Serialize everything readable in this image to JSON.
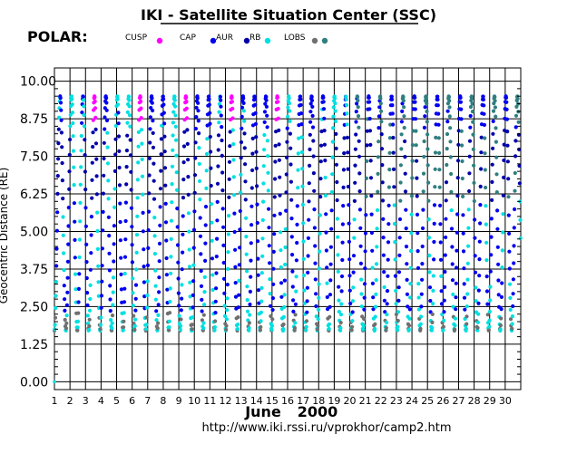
{
  "title": "IKI - Satellite Situation Center (SSC)",
  "satellite": "POLAR:",
  "legend": [
    {
      "label": "CUSP",
      "color": "#ff00ff"
    },
    {
      "label": "CAP",
      "color": "#0000ee"
    },
    {
      "label": "AUR",
      "color": "#0000aa"
    },
    {
      "label": "RB",
      "color": "#00e0e0"
    },
    {
      "label": "LOBS",
      "color": "#707070"
    },
    {
      "label": "",
      "color": "#2f7f80"
    }
  ],
  "month_label": "June",
  "year_label": "2000",
  "url": "http://www.iki.rssi.ru/vprokhor/camp2.htm",
  "chart_data": {
    "type": "scatter",
    "title": "IKI - Satellite Situation Center (SSC)",
    "ylabel": "Geocentric Distance (RE)",
    "xlabel": "June 2000",
    "x_ticks": [
      "1",
      "2",
      "3",
      "4",
      "5",
      "6",
      "7",
      "8",
      "9",
      "10",
      "11",
      "12",
      "13",
      "14",
      "15",
      "16",
      "17",
      "18",
      "19",
      "20",
      "21",
      "22",
      "23",
      "24",
      "25",
      "26",
      "27",
      "28",
      "29",
      "30"
    ],
    "y_ticks": [
      "0.00",
      "1.25",
      "2.50",
      "3.75",
      "5.00",
      "6.25",
      "7.50",
      "8.75",
      "10.00"
    ],
    "xlim": [
      1,
      31
    ],
    "ylim": [
      0,
      10
    ],
    "orbit_period_days": 0.7353,
    "apogee_re": 9.5,
    "perigee_re": 1.7,
    "grid": true,
    "series": [
      {
        "name": "CUSP",
        "color": "#ff00ff"
      },
      {
        "name": "CAP",
        "color": "#0000ee"
      },
      {
        "name": "AUR",
        "color": "#0000aa"
      },
      {
        "name": "RB",
        "color": "#00e0e0"
      },
      {
        "name": "LOBS",
        "color": "#707070"
      }
    ]
  }
}
